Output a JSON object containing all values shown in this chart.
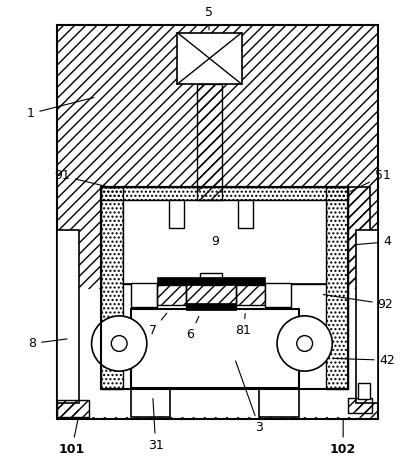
{
  "bg_color": "#ffffff",
  "figsize": [
    4.14,
    4.66
  ],
  "dpi": 100,
  "label_size": 9
}
